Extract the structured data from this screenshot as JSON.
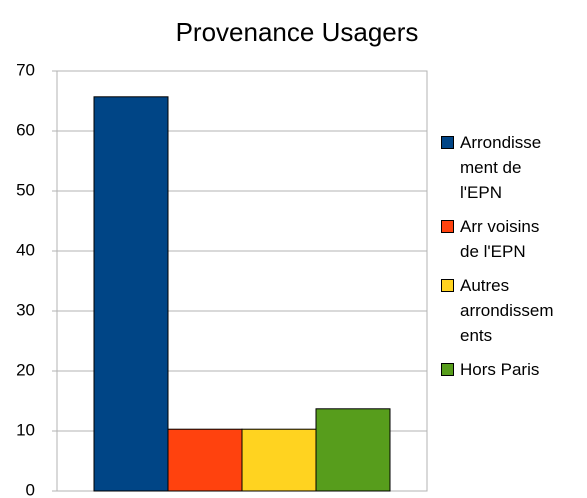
{
  "chart_data": {
    "type": "bar",
    "title": "Provenance Usagers",
    "categories": [
      null
    ],
    "series": [
      {
        "name": "Arrondissement de l'EPN",
        "color": "#004586",
        "values": [
          65.7
        ]
      },
      {
        "name": "Arr voisins de l'EPN",
        "color": "#ff420e",
        "values": [
          10.3
        ]
      },
      {
        "name": "Autres arrondissements",
        "color": "#ffd320",
        "values": [
          10.3
        ]
      },
      {
        "name": "Hors Paris",
        "color": "#579d1c",
        "values": [
          13.7
        ]
      }
    ],
    "ylim": [
      0,
      70
    ],
    "yticks": [
      0,
      10,
      20,
      30,
      40,
      50,
      60,
      70
    ],
    "grid": true,
    "legend": "right"
  }
}
